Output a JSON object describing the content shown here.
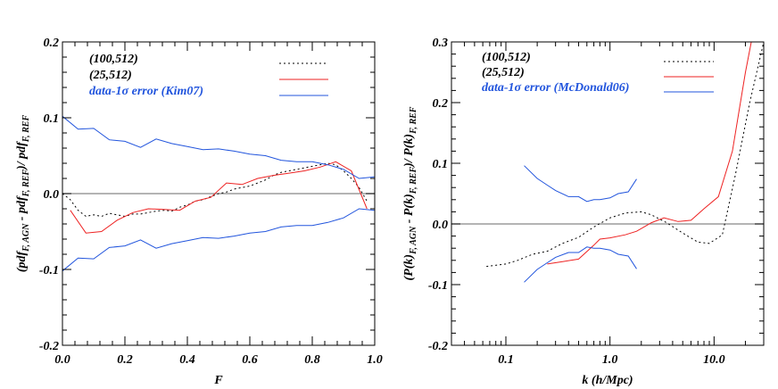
{
  "colors": {
    "red": "#ee2222",
    "blue": "#2255dd",
    "black": "#000000",
    "zero": "#888888"
  },
  "chart_data": [
    {
      "type": "line",
      "xlabel": "F",
      "ylabel": "(pdf F, AGN - pdf F, REF)/ pdf F, REF",
      "ylabel_parts": {
        "p1": "(pdf",
        "s1": "F, AGN",
        "p2": " - pdf",
        "s2": "F, REF",
        "p3": ")/ pdf",
        "s3": "F, REF"
      },
      "xlim": [
        0.0,
        1.0
      ],
      "ylim": [
        -0.2,
        0.2
      ],
      "xscale": "linear",
      "xticks": [
        0.0,
        0.2,
        0.4,
        0.6,
        0.8,
        1.0
      ],
      "xtick_labels": [
        "0.0",
        "0.2",
        "0.4",
        "0.6",
        "0.8",
        "1.0"
      ],
      "yticks": [
        -0.2,
        -0.1,
        0.0,
        0.1,
        0.2
      ],
      "ytick_labels": [
        "-0.2",
        "-0.1",
        "0.0",
        "0.1",
        "0.2"
      ],
      "zero_line": true,
      "legend": [
        {
          "label": "(100,512)",
          "series": "(100,512)",
          "text_color": "#000000"
        },
        {
          "label": "(25,512)",
          "series": "(25,512)",
          "text_color": "#000000"
        },
        {
          "label": "data-1σ error (Kim07)",
          "series": "data-1σ error (Kim07)",
          "text_color": "#2255dd"
        }
      ],
      "series": [
        {
          "name": "(100,512)",
          "style": "dotted",
          "color": "#000000",
          "x": [
            0.0,
            0.025,
            0.05,
            0.075,
            0.1,
            0.125,
            0.15,
            0.175,
            0.2,
            0.225,
            0.25,
            0.275,
            0.3,
            0.325,
            0.35,
            0.375,
            0.4,
            0.425,
            0.45,
            0.475,
            0.5,
            0.525,
            0.55,
            0.575,
            0.6,
            0.625,
            0.65,
            0.675,
            0.7,
            0.725,
            0.75,
            0.775,
            0.8,
            0.825,
            0.85,
            0.875,
            0.9,
            0.925,
            0.95,
            0.975
          ],
          "y": [
            0.0,
            -0.008,
            -0.022,
            -0.03,
            -0.028,
            -0.03,
            -0.026,
            -0.028,
            -0.03,
            -0.027,
            -0.027,
            -0.025,
            -0.023,
            -0.022,
            -0.023,
            -0.018,
            -0.015,
            -0.01,
            -0.008,
            -0.004,
            0.0,
            0.002,
            0.006,
            0.008,
            0.01,
            0.014,
            0.018,
            0.024,
            0.028,
            0.03,
            0.032,
            0.034,
            0.036,
            0.038,
            0.04,
            0.038,
            0.03,
            0.02,
            0.008,
            -0.01
          ]
        },
        {
          "name": "(25,512)",
          "style": "solid",
          "color": "#ee2222",
          "x": [
            0.025,
            0.075,
            0.125,
            0.175,
            0.225,
            0.275,
            0.325,
            0.375,
            0.425,
            0.475,
            0.525,
            0.575,
            0.625,
            0.675,
            0.725,
            0.775,
            0.825,
            0.875,
            0.925,
            0.975
          ],
          "y": [
            -0.022,
            -0.052,
            -0.05,
            -0.035,
            -0.025,
            -0.02,
            -0.021,
            -0.022,
            -0.01,
            -0.005,
            0.014,
            0.012,
            0.02,
            0.024,
            0.027,
            0.03,
            0.035,
            0.042,
            0.03,
            -0.02
          ]
        },
        {
          "name": "data-1σ error (Kim07)",
          "style": "solid",
          "color": "#2255dd",
          "x": [
            0.0,
            0.05,
            0.1,
            0.15,
            0.2,
            0.25,
            0.3,
            0.35,
            0.4,
            0.45,
            0.5,
            0.55,
            0.6,
            0.65,
            0.7,
            0.75,
            0.8,
            0.85,
            0.9,
            0.95,
            1.0
          ],
          "y": [
            0.102,
            0.085,
            0.086,
            0.071,
            0.069,
            0.061,
            0.072,
            0.066,
            0.062,
            0.058,
            0.059,
            0.056,
            0.052,
            0.05,
            0.044,
            0.042,
            0.042,
            0.038,
            0.032,
            0.02,
            0.022
          ]
        },
        {
          "name": "data-1σ error (Kim07)",
          "style": "solid",
          "color": "#2255dd",
          "x": [
            0.0,
            0.05,
            0.1,
            0.15,
            0.2,
            0.25,
            0.3,
            0.35,
            0.4,
            0.45,
            0.5,
            0.55,
            0.6,
            0.65,
            0.7,
            0.75,
            0.8,
            0.85,
            0.9,
            0.95,
            1.0
          ],
          "y": [
            -0.102,
            -0.085,
            -0.086,
            -0.071,
            -0.069,
            -0.061,
            -0.072,
            -0.066,
            -0.062,
            -0.058,
            -0.059,
            -0.056,
            -0.052,
            -0.05,
            -0.044,
            -0.042,
            -0.042,
            -0.038,
            -0.032,
            -0.02,
            -0.022
          ]
        }
      ]
    },
    {
      "type": "line",
      "xlabel": "k (h/Mpc)",
      "ylabel": "(P(k) F, AGN - P(k) F, REF)/ P(k) F, REF",
      "ylabel_parts": {
        "p1": "(P(k)",
        "s1": "F, AGN",
        "p2": " - P(k)",
        "s2": "F, REF",
        "p3": ")/ P(k)",
        "s3": "F, REF"
      },
      "xlim": [
        0.03,
        30.0
      ],
      "ylim": [
        -0.2,
        0.3
      ],
      "xscale": "log",
      "xticks": [
        0.1,
        1.0,
        10.0
      ],
      "xtick_labels": [
        "0.1",
        "1.0",
        "10.0"
      ],
      "yticks": [
        -0.2,
        -0.1,
        0.0,
        0.1,
        0.2,
        0.3
      ],
      "ytick_labels": [
        "-0.2",
        "-0.1",
        "0.0",
        "0.1",
        "0.2",
        "0.3"
      ],
      "zero_line": true,
      "legend": [
        {
          "label": "(100,512)",
          "series": "(100,512)",
          "text_color": "#000000"
        },
        {
          "label": "(25,512)",
          "series": "(25,512)",
          "text_color": "#000000"
        },
        {
          "label": "data-1σ error (McDonald06)",
          "series": "data-1σ error (McDonald06)",
          "text_color": "#2255dd"
        }
      ],
      "series": [
        {
          "name": "(100,512)",
          "style": "dotted",
          "color": "#000000",
          "x": [
            0.065,
            0.1,
            0.13,
            0.18,
            0.25,
            0.35,
            0.5,
            0.7,
            1.0,
            1.4,
            2.0,
            2.5,
            3.5,
            5.0,
            7.0,
            9.0,
            12.0,
            16.0,
            22.0,
            30.0
          ],
          "y": [
            -0.07,
            -0.066,
            -0.06,
            -0.05,
            -0.045,
            -0.032,
            -0.022,
            -0.005,
            0.01,
            0.018,
            0.02,
            0.015,
            0.002,
            -0.015,
            -0.03,
            -0.032,
            -0.018,
            0.08,
            0.2,
            0.3
          ]
        },
        {
          "name": "(25,512)",
          "style": "solid",
          "color": "#ee2222",
          "x": [
            0.25,
            0.35,
            0.5,
            0.7,
            0.8,
            1.0,
            1.4,
            1.8,
            2.5,
            3.3,
            4.5,
            6.0,
            8.0,
            11.0,
            15.0,
            20.0,
            24.0
          ],
          "y": [
            -0.066,
            -0.062,
            -0.058,
            -0.035,
            -0.025,
            -0.023,
            -0.018,
            -0.012,
            0.002,
            0.01,
            0.004,
            0.006,
            0.025,
            0.045,
            0.12,
            0.25,
            0.32
          ]
        },
        {
          "name": "data-1σ error (McDonald06)",
          "style": "solid",
          "color": "#2255dd",
          "x": [
            0.15,
            0.2,
            0.25,
            0.3,
            0.4,
            0.5,
            0.6,
            0.7,
            0.8,
            1.0,
            1.2,
            1.5,
            1.8
          ],
          "y": [
            0.096,
            0.075,
            0.064,
            0.055,
            0.045,
            0.045,
            0.037,
            0.04,
            0.04,
            0.043,
            0.05,
            0.053,
            0.074
          ]
        },
        {
          "name": "data-1σ error (McDonald06)",
          "style": "solid",
          "color": "#2255dd",
          "x": [
            0.15,
            0.2,
            0.25,
            0.3,
            0.4,
            0.5,
            0.6,
            0.7,
            0.8,
            1.0,
            1.2,
            1.5,
            1.8
          ],
          "y": [
            -0.096,
            -0.075,
            -0.064,
            -0.055,
            -0.047,
            -0.047,
            -0.038,
            -0.04,
            -0.04,
            -0.043,
            -0.05,
            -0.053,
            -0.074
          ]
        }
      ]
    }
  ]
}
